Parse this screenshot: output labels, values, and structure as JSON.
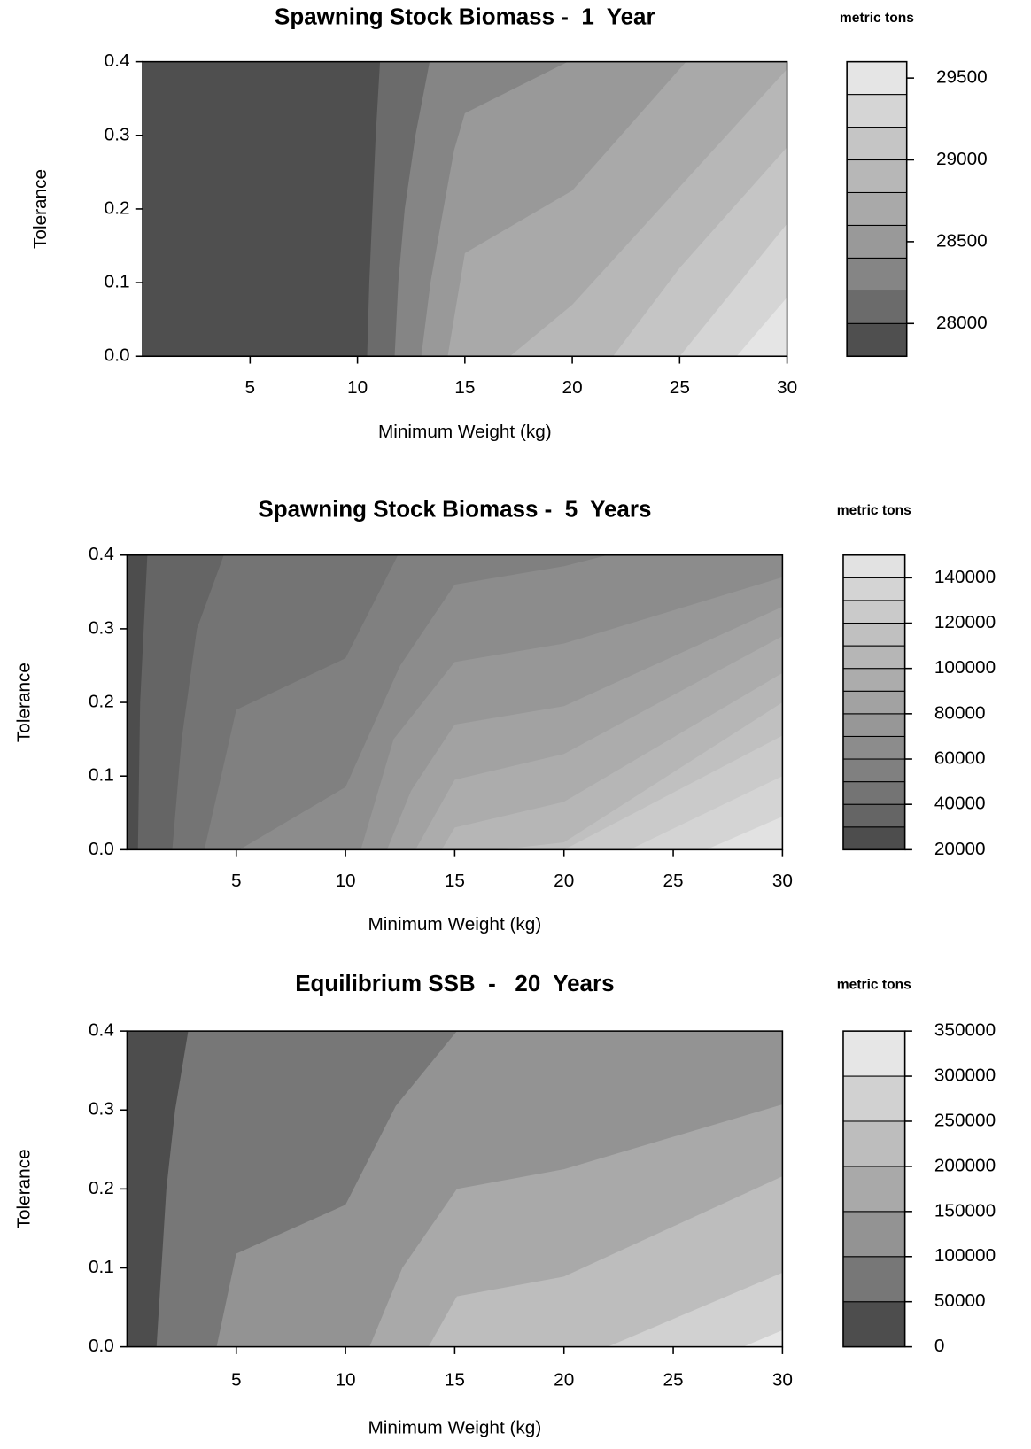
{
  "chart_data": [
    {
      "type": "contour",
      "title": "Spawning Stock Biomass -  1  Year",
      "legend_title": "metric tons",
      "x_label": "Minimum Weight (kg)",
      "y_label": "Tolerance",
      "xlim": [
        0,
        30
      ],
      "ylim": [
        0,
        0.4
      ],
      "xticks": [
        5,
        10,
        15,
        20,
        25,
        30
      ],
      "yticks": [
        {
          "value": 0,
          "label": "0.0"
        },
        0.1,
        0.2,
        0.3,
        0.4
      ],
      "levels": [
        27800,
        28000,
        28200,
        28400,
        28600,
        28800,
        29000,
        29200,
        29400,
        29600
      ],
      "level_ticks": [
        28000,
        28500,
        29000,
        29500
      ],
      "colors": [
        "#4f4f4f",
        "#6b6b6b",
        "#858585",
        "#999999",
        "#a9a9a9",
        "#b7b7b7",
        "#c5c5c5",
        "#d5d5d5",
        "#e5e5e5"
      ],
      "contours": [
        {
          "x": [
            10.45,
            10.55,
            10.7,
            10.85,
            11.05
          ],
          "y": [
            0,
            0.1,
            0.2,
            0.3,
            0.4
          ]
        },
        {
          "x": [
            11.73,
            11.9,
            12.2,
            12.7,
            13.36
          ],
          "y": [
            0,
            0.1,
            0.2,
            0.3,
            0.4
          ]
        },
        {
          "x": [
            12.97,
            13.4,
            14.0,
            14.5,
            15,
            19.8
          ],
          "y": [
            0,
            0.1,
            0.2,
            0.28,
            0.33,
            0.4
          ]
        },
        {
          "x": [
            14.2,
            15,
            20,
            25.3
          ],
          "y": [
            0,
            0.14,
            0.225,
            0.4
          ]
        },
        {
          "x": [
            17.1,
            20,
            30
          ],
          "y": [
            0,
            0.07,
            0.39
          ]
        },
        {
          "x": [
            21.9,
            25,
            30
          ],
          "y": [
            0,
            0.12,
            0.284
          ]
        },
        {
          "x": [
            25,
            30
          ],
          "y": [
            0,
            0.18
          ]
        },
        {
          "x": [
            27.65,
            30
          ],
          "y": [
            0,
            0.08
          ]
        }
      ]
    },
    {
      "type": "contour",
      "title": "Spawning Stock Biomass -  5  Years",
      "legend_title": "metric tons",
      "x_label": "Minimum Weight (kg)",
      "y_label": "Tolerance",
      "xlim": [
        0,
        30
      ],
      "ylim": [
        0,
        0.4
      ],
      "xticks": [
        5,
        10,
        15,
        20,
        25,
        30
      ],
      "yticks": [
        {
          "value": 0,
          "label": "0.0"
        },
        0.1,
        0.2,
        0.3,
        0.4
      ],
      "levels": [
        20000,
        30000,
        40000,
        50000,
        60000,
        70000,
        80000,
        90000,
        100000,
        110000,
        120000,
        130000,
        140000,
        150000
      ],
      "level_ticks": [
        20000,
        40000,
        60000,
        80000,
        100000,
        120000,
        140000
      ],
      "colors": [
        "#4d4d4d",
        "#656565",
        "#747474",
        "#808080",
        "#8c8c8c",
        "#979797",
        "#a2a2a2",
        "#acacac",
        "#b6b6b6",
        "#c0c0c0",
        "#cacaca",
        "#d4d4d4",
        "#e2e2e2"
      ],
      "contours": [
        {
          "x": [
            0.5,
            0.6,
            0.93
          ],
          "y": [
            0,
            0.2,
            0.4
          ]
        },
        {
          "x": [
            2.07,
            2.5,
            3.2,
            4.43
          ],
          "y": [
            0,
            0.15,
            0.3,
            0.4
          ]
        },
        {
          "x": [
            3.54,
            5,
            10,
            12.4
          ],
          "y": [
            0,
            0.19,
            0.26,
            0.4
          ]
        },
        {
          "x": [
            5.14,
            10,
            12.5,
            15,
            20,
            22
          ],
          "y": [
            0,
            0.085,
            0.25,
            0.36,
            0.385,
            0.4
          ]
        },
        {
          "x": [
            10.7,
            12.2,
            15,
            20,
            30
          ],
          "y": [
            0,
            0.15,
            0.255,
            0.28,
            0.37
          ]
        },
        {
          "x": [
            11.9,
            13,
            15,
            20,
            30
          ],
          "y": [
            0,
            0.08,
            0.17,
            0.195,
            0.33
          ]
        },
        {
          "x": [
            13.2,
            15,
            20,
            30
          ],
          "y": [
            0,
            0.095,
            0.13,
            0.29
          ]
        },
        {
          "x": [
            14.4,
            15,
            20,
            30
          ],
          "y": [
            0,
            0.03,
            0.065,
            0.24
          ]
        },
        {
          "x": [
            17,
            20,
            30
          ],
          "y": [
            0,
            0.01,
            0.2
          ]
        },
        {
          "x": [
            20,
            30
          ],
          "y": [
            0,
            0.155
          ]
        },
        {
          "x": [
            23,
            30
          ],
          "y": [
            0,
            0.1
          ]
        },
        {
          "x": [
            26.5,
            30
          ],
          "y": [
            0,
            0.045
          ]
        }
      ]
    },
    {
      "type": "contour",
      "title": "Equilibrium SSB  -   20  Years",
      "legend_title": "metric tons",
      "x_label": "Minimum Weight (kg)",
      "y_label": "Tolerance",
      "xlim": [
        0,
        30
      ],
      "ylim": [
        0,
        0.4
      ],
      "xticks": [
        5,
        10,
        15,
        20,
        25,
        30
      ],
      "yticks": [
        {
          "value": 0,
          "label": "0.0"
        },
        0.1,
        0.2,
        0.3,
        0.4
      ],
      "levels": [
        0,
        50000,
        100000,
        150000,
        200000,
        250000,
        300000,
        350000
      ],
      "level_ticks": [
        0,
        50000,
        100000,
        150000,
        200000,
        250000,
        300000,
        350000
      ],
      "colors": [
        "#4d4d4d",
        "#777777",
        "#939393",
        "#a9a9a9",
        "#bdbdbd",
        "#d1d1d1",
        "#e6e6e6"
      ],
      "contours": [
        {
          "x": [
            1.35,
            1.8,
            2.2,
            2.8
          ],
          "y": [
            0,
            0.2,
            0.3,
            0.4
          ]
        },
        {
          "x": [
            4.1,
            5,
            10,
            12.3,
            15.1
          ],
          "y": [
            0,
            0.118,
            0.18,
            0.305,
            0.4
          ]
        },
        {
          "x": [
            11.1,
            12.6,
            15.1,
            20,
            30
          ],
          "y": [
            0,
            0.1,
            0.2,
            0.225,
            0.307
          ]
        },
        {
          "x": [
            13.8,
            15.1,
            20,
            30
          ],
          "y": [
            0,
            0.064,
            0.089,
            0.216
          ]
        },
        {
          "x": [
            22,
            30
          ],
          "y": [
            0,
            0.094
          ]
        },
        {
          "x": [
            28.2,
            30
          ],
          "y": [
            0,
            0.021
          ]
        }
      ]
    }
  ]
}
